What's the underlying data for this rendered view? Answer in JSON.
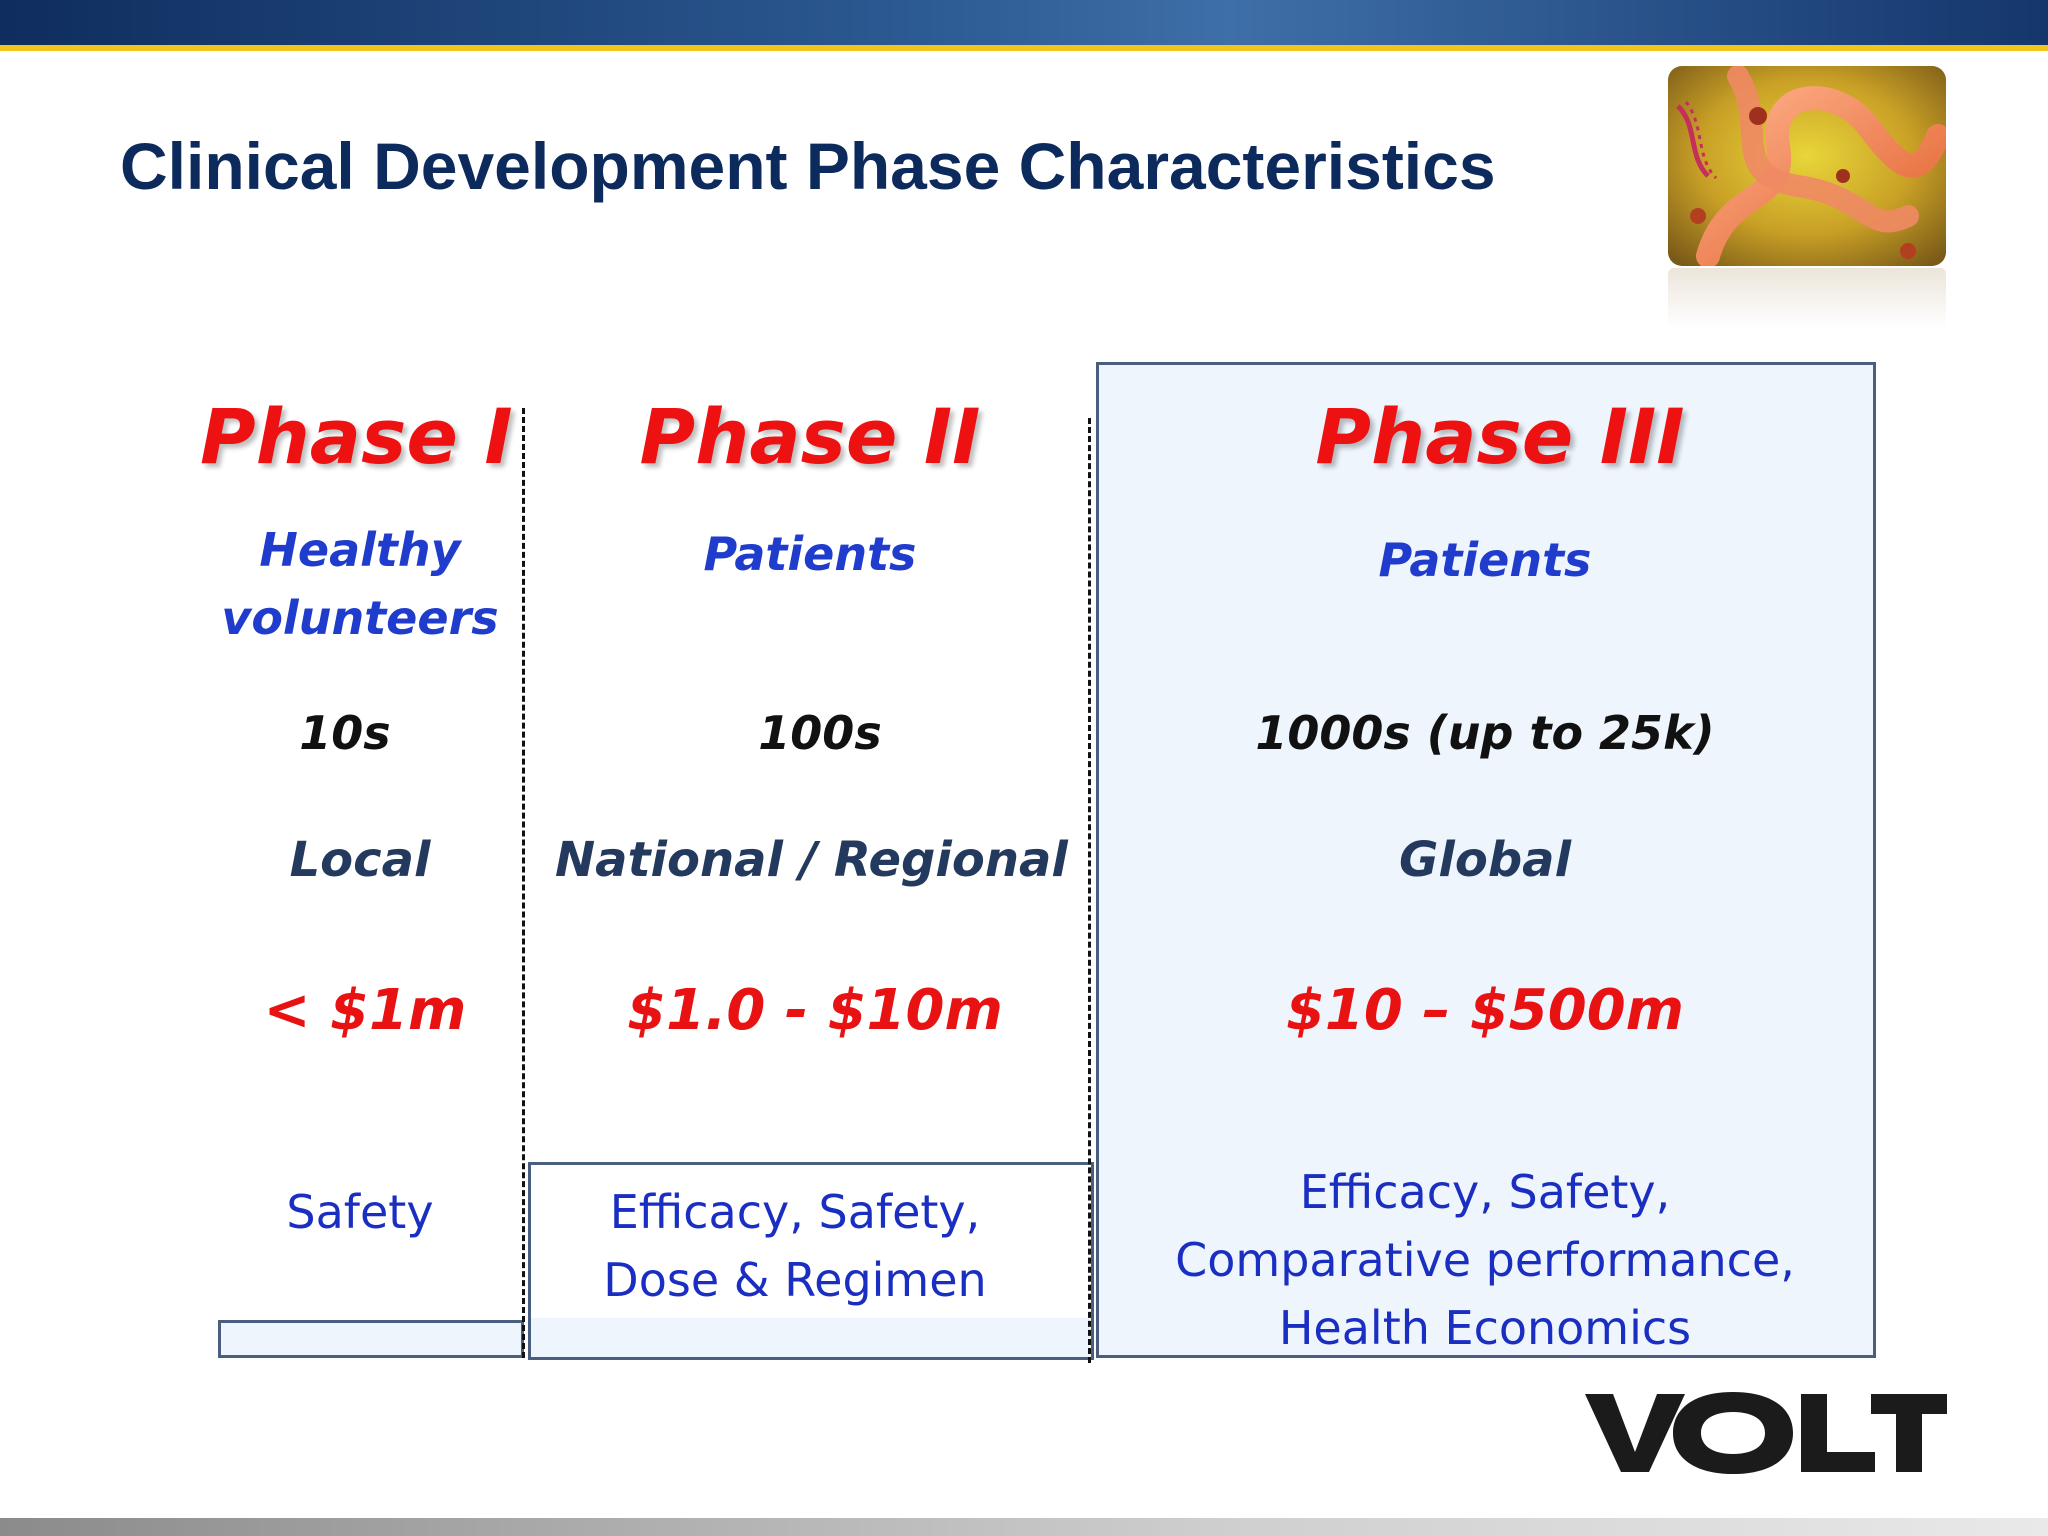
{
  "slide": {
    "title": "Clinical Development Phase Characteristics",
    "logo_text": "VOLT",
    "image_icon": "biotech-helix-image"
  },
  "phases": [
    {
      "heading": "Phase I",
      "population": [
        "Healthy",
        "volunteers"
      ],
      "size": "10s",
      "geography": "Local",
      "cost": "< $1m",
      "focus": [
        "Safety"
      ]
    },
    {
      "heading": "Phase II",
      "population": [
        "Patients"
      ],
      "size": "100s",
      "geography": "National / Regional",
      "cost": "$1.0 - $10m",
      "focus": [
        "Efficacy, Safety,",
        "Dose & Regimen"
      ]
    },
    {
      "heading": "Phase III",
      "population": [
        "Patients"
      ],
      "size": "1000s (up to 25k)",
      "geography": "Global",
      "cost": "$10 – $500m",
      "focus": [
        "Efficacy, Safety,",
        "Comparative performance,",
        "Health Economics"
      ]
    }
  ],
  "colors": {
    "heading": "#ee1111",
    "population": "#1f3ccc",
    "cost": "#e81212",
    "title": "#0d2a5c",
    "highlight_fill": "#eef5fd"
  }
}
